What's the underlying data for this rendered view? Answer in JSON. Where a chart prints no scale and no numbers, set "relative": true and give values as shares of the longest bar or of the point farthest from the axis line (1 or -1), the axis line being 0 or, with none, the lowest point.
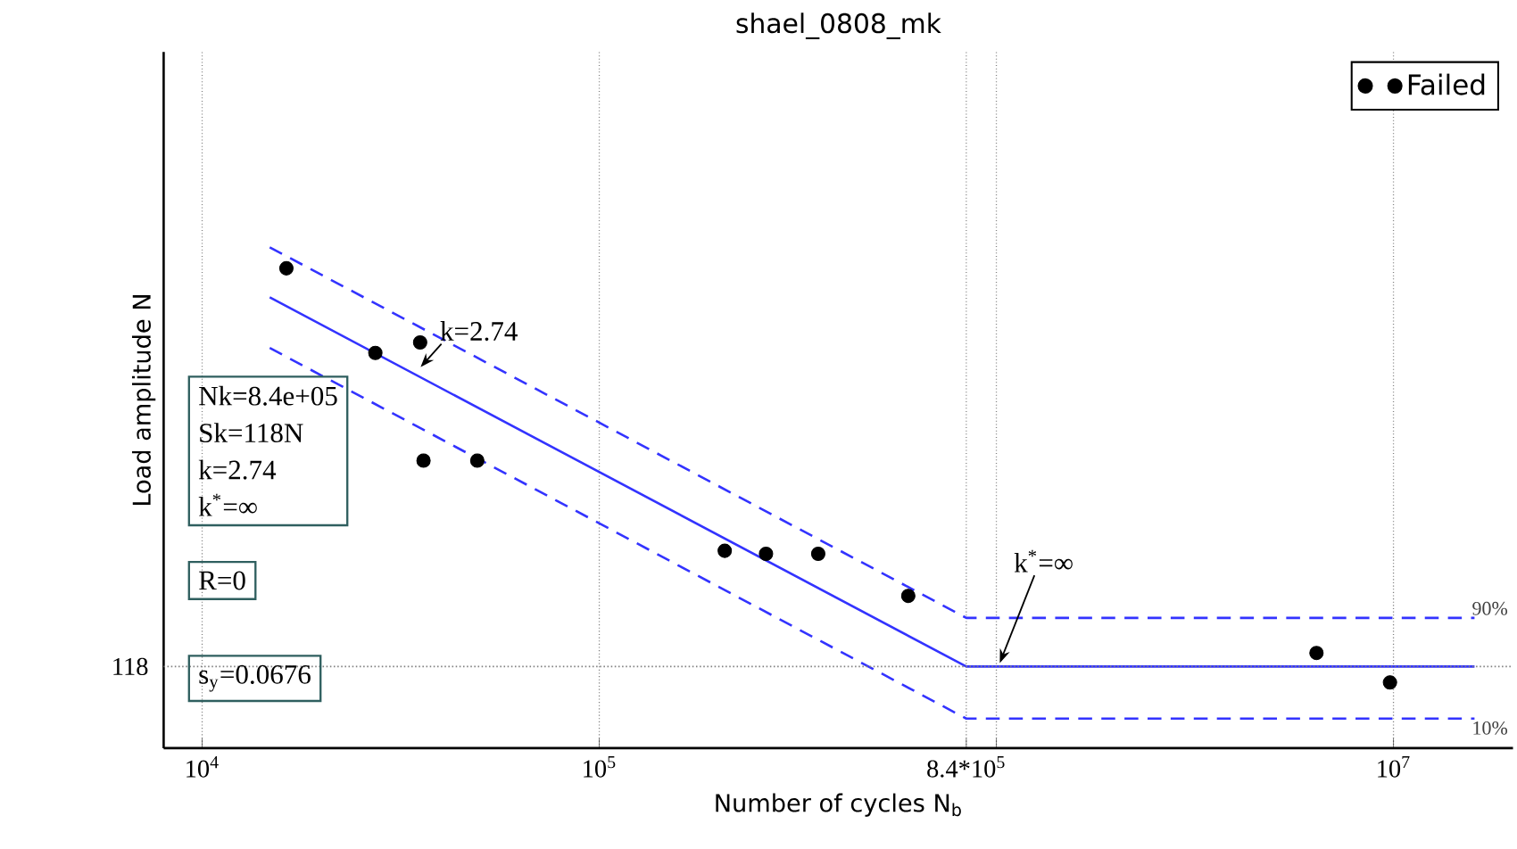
{
  "chart_data": {
    "type": "line",
    "title": "shael_0808_mk",
    "xlabel": "Number of cycles N$_{b}$",
    "ylabel": "Load amplitude N",
    "relative": true,
    "log": "x",
    "grid": "x",
    "legend": "top right",
    "xlim": [
      8000,
      20000000
    ],
    "xticks": [
      {
        "value": 10000,
        "label": "10$^{4}$"
      },
      {
        "value": 100000,
        "label": "10$^{5}$"
      },
      {
        "value": 840000,
        "label": "8.4*10$^{5}$"
      },
      {
        "value": 1000000,
        "label": null
      },
      {
        "value": 10000000,
        "label": "10$^{7}$"
      }
    ],
    "series": [
      {
        "name": "Failed",
        "type": "scatter",
        "marker": "circle",
        "color": "#000000",
        "x": [
          16300,
          27300,
          35400,
          36100,
          49300,
          207000,
          263000,
          356000,
          600000,
          6400000,
          9800000
        ],
        "values": [
          0.958,
          0.789,
          0.81,
          0.574,
          0.574,
          0.394,
          0.388,
          0.388,
          0.304,
          0.19,
          0.131
        ]
      },
      {
        "line_style": "solid",
        "color": "#3333ff",
        "x": [
          14800,
          840000,
          16000000
        ],
        "values": [
          0.9,
          0.163,
          0.163
        ]
      },
      {
        "name": "90%",
        "line_style": "dashed",
        "color": "#3333ff",
        "x": [
          14800,
          840000,
          16000000
        ],
        "values": [
          1.0,
          0.26,
          0.26
        ]
      },
      {
        "name": "10%",
        "line_style": "dashed",
        "color": "#3333ff",
        "x": [
          14800,
          840000,
          16000000
        ],
        "values": [
          0.799,
          0.059,
          0.059
        ]
      }
    ],
    "ref_lines": [
      {
        "axis": "y",
        "value": 0.163,
        "color": "#808080",
        "line_style": "dotted"
      }
    ],
    "annotations": [
      {
        "text": "k=2.74",
        "x": 35500,
        "y": 0.761
      },
      {
        "text": "k$^{*}$=∞",
        "x": 1020000,
        "y": 0.17
      },
      "Nk=8.4e+05",
      "Sk=118N",
      "k=2.74",
      "k$^{*}$=∞",
      "R=0",
      "s$_{y}$=0.0676",
      "118"
    ]
  }
}
